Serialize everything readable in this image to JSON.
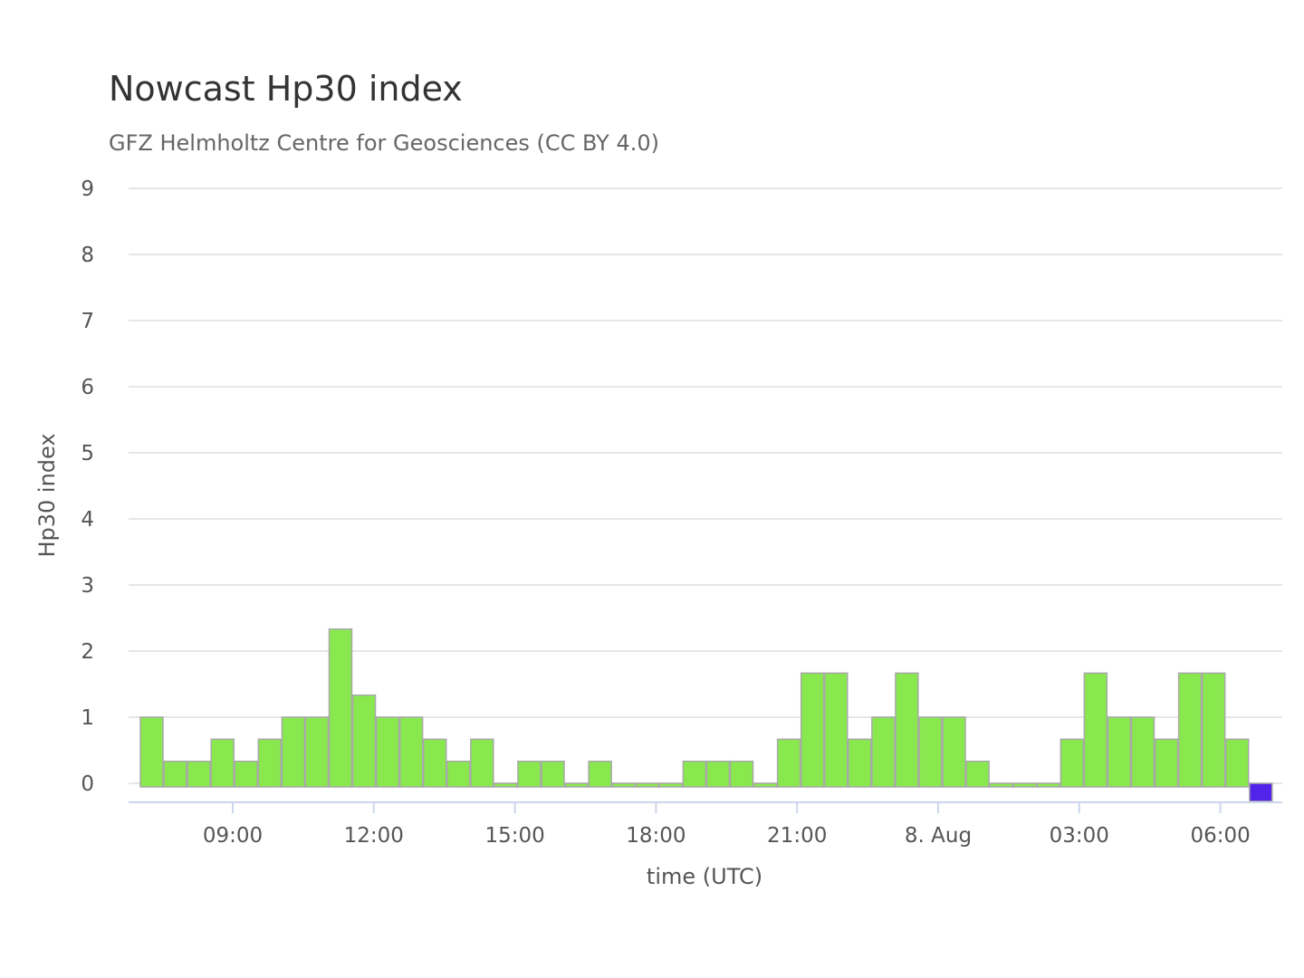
{
  "chart_data": {
    "type": "bar",
    "title": "Nowcast Hp30 index",
    "subtitle": "GFZ Helmholtz Centre for Geosciences (CC BY 4.0)",
    "xlabel": "time (UTC)",
    "ylabel": "Hp30 index",
    "ylim": [
      0,
      9
    ],
    "y_ticks": [
      0,
      1,
      2,
      3,
      4,
      5,
      6,
      7,
      8,
      9
    ],
    "x_ticks": [
      "09:00",
      "12:00",
      "15:00",
      "18:00",
      "21:00",
      "8. Aug",
      "03:00",
      "06:00"
    ],
    "grid": true,
    "legend": "none",
    "interval": "30 minutes",
    "colors": {
      "bar": "#88e84e",
      "bar_border": "#a9a9a9",
      "nowcast_bar": "#5223e8",
      "grid": "#e6e6e6",
      "axis": "#ccd6eb"
    },
    "values": [
      1,
      0.333,
      0.333,
      0.667,
      0.333,
      0.667,
      1,
      1,
      2.333,
      1.333,
      1,
      1,
      0.667,
      0.333,
      0.667,
      0,
      0.333,
      0.333,
      0,
      0.333,
      0,
      0,
      0,
      0.333,
      0.333,
      0.333,
      0,
      0.667,
      1.667,
      1.667,
      0.667,
      1,
      1.667,
      1,
      1,
      0.333,
      0,
      0,
      0,
      0.667,
      1.667,
      1,
      1,
      0.667,
      1.667,
      1.667,
      0.667,
      0
    ],
    "highlighted_index": 47
  }
}
